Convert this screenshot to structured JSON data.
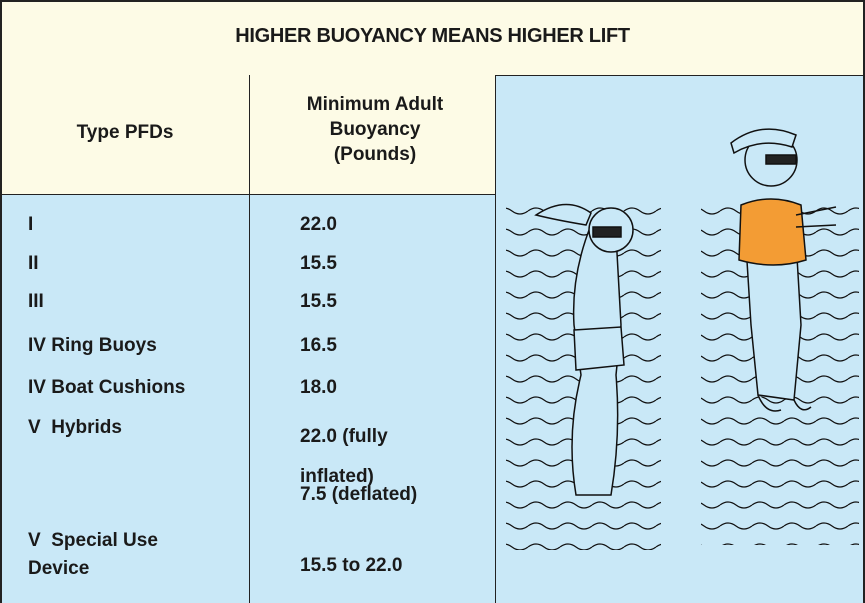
{
  "title": "HIGHER BUOYANCY MEANS HIGHER LIFT",
  "table": {
    "headers": [
      "Type PFDs",
      "Minimum Adult Buoyancy (Pounds)"
    ],
    "rows": [
      [
        "I",
        "22.0"
      ],
      [
        "II",
        "15.5"
      ],
      [
        "III",
        "15.5"
      ],
      [
        "IV Ring Buoys",
        "16.5"
      ],
      [
        "IV Boat Cushions",
        "18.0"
      ],
      [
        "V  Hybrids",
        "22.0 (fully inflated)",
        "7.5 (deflated)"
      ],
      [
        "V  Special Use Device",
        "15.5 to 22.0"
      ]
    ]
  }
}
